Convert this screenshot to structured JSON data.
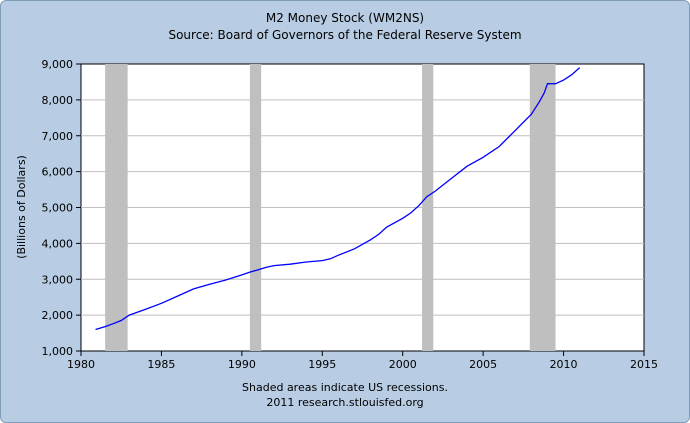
{
  "chart_data": {
    "type": "line",
    "title": "M2 Money Stock (WM2NS)",
    "subtitle": "Source: Board of Governors of the Federal Reserve System",
    "xlabel": "",
    "ylabel": "(Billions of Dollars)",
    "xlim": [
      1980,
      2015
    ],
    "ylim": [
      1000,
      9000
    ],
    "x_ticks": [
      1980,
      1985,
      1990,
      1995,
      2000,
      2005,
      2010,
      2015
    ],
    "x_tick_labels": [
      "1980",
      "1985",
      "1990",
      "1995",
      "2000",
      "2005",
      "2010",
      "2015"
    ],
    "y_ticks": [
      1000,
      2000,
      3000,
      4000,
      5000,
      6000,
      7000,
      8000,
      9000
    ],
    "y_tick_labels": [
      "1,000",
      "2,000",
      "3,000",
      "4,000",
      "5,000",
      "6,000",
      "7,000",
      "8,000",
      "9,000"
    ],
    "grid": "horizontal",
    "recessions": [
      [
        1981.5,
        1982.9
      ],
      [
        1990.5,
        1991.2
      ],
      [
        2001.2,
        2001.9
      ],
      [
        2007.9,
        2009.5
      ]
    ],
    "series": [
      {
        "color": "#0000ff",
        "points": [
          [
            1980.9,
            1600
          ],
          [
            1981.5,
            1680
          ],
          [
            1982,
            1760
          ],
          [
            1982.5,
            1850
          ],
          [
            1983,
            2000
          ],
          [
            1983.5,
            2080
          ],
          [
            1984,
            2160
          ],
          [
            1985,
            2330
          ],
          [
            1986,
            2530
          ],
          [
            1987,
            2730
          ],
          [
            1988,
            2860
          ],
          [
            1989,
            2980
          ],
          [
            1990,
            3120
          ],
          [
            1990.5,
            3200
          ],
          [
            1991,
            3260
          ],
          [
            1991.5,
            3330
          ],
          [
            1992,
            3380
          ],
          [
            1993,
            3420
          ],
          [
            1994,
            3480
          ],
          [
            1995,
            3520
          ],
          [
            1995.5,
            3570
          ],
          [
            1996,
            3670
          ],
          [
            1997,
            3850
          ],
          [
            1998,
            4100
          ],
          [
            1998.5,
            4250
          ],
          [
            1999,
            4450
          ],
          [
            2000,
            4700
          ],
          [
            2000.5,
            4850
          ],
          [
            2001,
            5050
          ],
          [
            2001.5,
            5300
          ],
          [
            2002,
            5450
          ],
          [
            2003,
            5800
          ],
          [
            2004,
            6150
          ],
          [
            2005,
            6400
          ],
          [
            2006,
            6700
          ],
          [
            2007,
            7150
          ],
          [
            2008,
            7600
          ],
          [
            2008.5,
            7950
          ],
          [
            2008.8,
            8200
          ],
          [
            2009,
            8450
          ],
          [
            2009.5,
            8450
          ],
          [
            2010,
            8550
          ],
          [
            2010.5,
            8700
          ],
          [
            2011,
            8900
          ]
        ]
      }
    ]
  },
  "footer": {
    "note": "Shaded areas indicate US recessions.",
    "credit": "2011 research.stlouisfed.org"
  }
}
